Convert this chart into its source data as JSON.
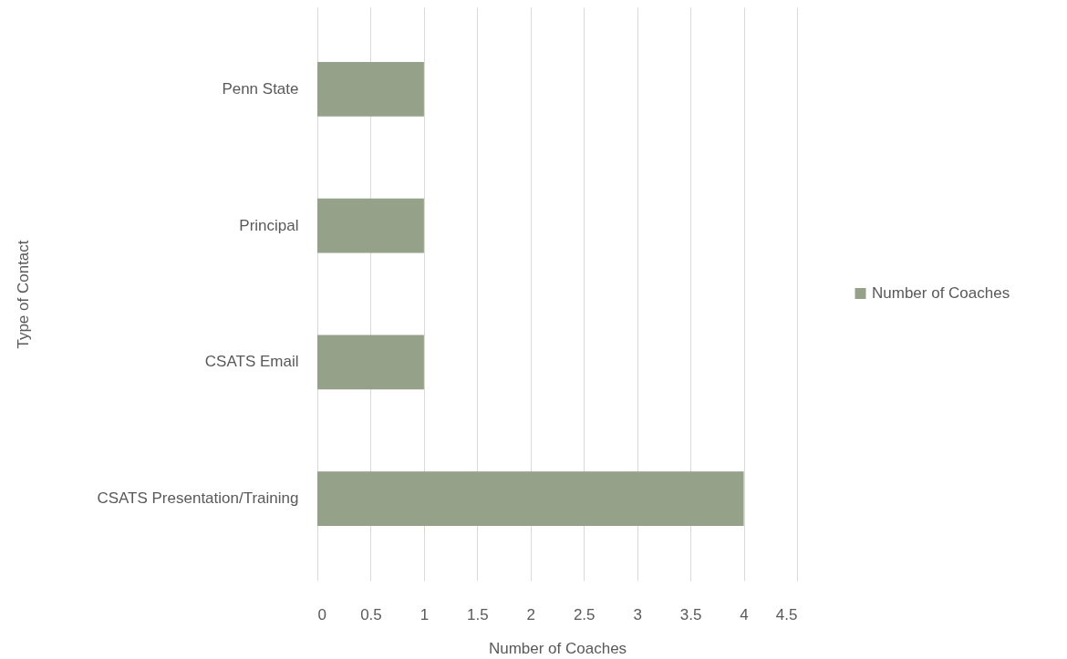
{
  "chart_data": {
    "type": "bar",
    "orientation": "horizontal",
    "categories": [
      "Penn State",
      "Principal",
      "CSATS Email",
      "CSATS Presentation/Training"
    ],
    "series": [
      {
        "name": "Number of Coaches",
        "color": "#95a189",
        "values": [
          1,
          1,
          1,
          4
        ]
      }
    ],
    "xlabel": "Number of Coaches",
    "ylabel": "Type of Contact",
    "xlim": [
      0,
      4.5
    ],
    "xticks": [
      0,
      0.5,
      1,
      1.5,
      2,
      2.5,
      3,
      3.5,
      4,
      4.5
    ],
    "grid": "x",
    "legend": "right"
  }
}
